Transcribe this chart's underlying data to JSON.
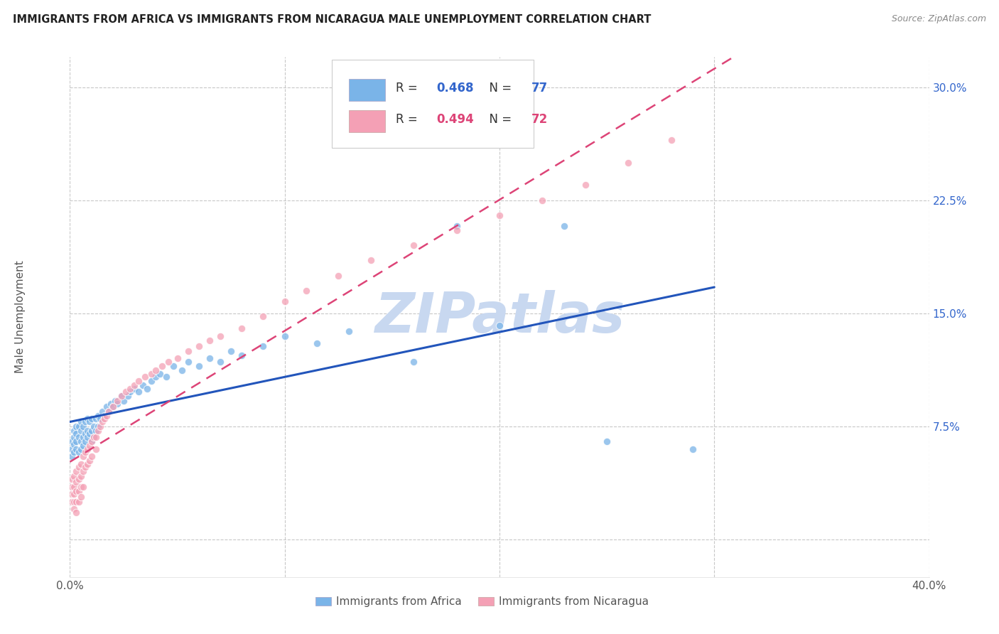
{
  "title": "IMMIGRANTS FROM AFRICA VS IMMIGRANTS FROM NICARAGUA MALE UNEMPLOYMENT CORRELATION CHART",
  "source": "Source: ZipAtlas.com",
  "ylabel": "Male Unemployment",
  "xlim": [
    0.0,
    0.4
  ],
  "ylim": [
    -0.025,
    0.32
  ],
  "series1_label": "Immigrants from Africa",
  "series2_label": "Immigrants from Nicaragua",
  "R1": 0.468,
  "N1": 77,
  "R2": 0.494,
  "N2": 72,
  "color1": "#7ab4e8",
  "color2": "#f4a0b5",
  "line1_color": "#2255bb",
  "line2_color": "#dd4477",
  "watermark": "ZIPatlas",
  "watermark_color": "#c8d8f0",
  "background_color": "#ffffff",
  "grid_color": "#c8c8c8",
  "africa_x": [
    0.001,
    0.001,
    0.001,
    0.002,
    0.002,
    0.002,
    0.002,
    0.003,
    0.003,
    0.003,
    0.003,
    0.004,
    0.004,
    0.004,
    0.005,
    0.005,
    0.005,
    0.005,
    0.006,
    0.006,
    0.006,
    0.007,
    0.007,
    0.007,
    0.008,
    0.008,
    0.008,
    0.009,
    0.009,
    0.01,
    0.01,
    0.01,
    0.011,
    0.011,
    0.012,
    0.012,
    0.013,
    0.013,
    0.014,
    0.015,
    0.016,
    0.017,
    0.018,
    0.019,
    0.02,
    0.021,
    0.022,
    0.024,
    0.025,
    0.027,
    0.028,
    0.03,
    0.032,
    0.034,
    0.036,
    0.038,
    0.04,
    0.042,
    0.045,
    0.048,
    0.052,
    0.055,
    0.06,
    0.065,
    0.07,
    0.075,
    0.08,
    0.09,
    0.1,
    0.115,
    0.13,
    0.16,
    0.18,
    0.2,
    0.23,
    0.25,
    0.29
  ],
  "africa_y": [
    0.055,
    0.06,
    0.065,
    0.058,
    0.063,
    0.068,
    0.072,
    0.06,
    0.065,
    0.07,
    0.075,
    0.058,
    0.068,
    0.075,
    0.06,
    0.065,
    0.072,
    0.078,
    0.062,
    0.068,
    0.075,
    0.065,
    0.07,
    0.078,
    0.068,
    0.072,
    0.08,
    0.07,
    0.078,
    0.065,
    0.072,
    0.08,
    0.068,
    0.075,
    0.072,
    0.08,
    0.075,
    0.082,
    0.08,
    0.085,
    0.082,
    0.088,
    0.085,
    0.09,
    0.088,
    0.092,
    0.09,
    0.095,
    0.092,
    0.095,
    0.098,
    0.1,
    0.098,
    0.102,
    0.1,
    0.105,
    0.108,
    0.11,
    0.108,
    0.115,
    0.112,
    0.118,
    0.115,
    0.12,
    0.118,
    0.125,
    0.122,
    0.128,
    0.135,
    0.13,
    0.138,
    0.118,
    0.208,
    0.142,
    0.208,
    0.065,
    0.06
  ],
  "nicaragua_x": [
    0.001,
    0.001,
    0.001,
    0.001,
    0.002,
    0.002,
    0.002,
    0.002,
    0.002,
    0.003,
    0.003,
    0.003,
    0.003,
    0.003,
    0.004,
    0.004,
    0.004,
    0.004,
    0.005,
    0.005,
    0.005,
    0.005,
    0.006,
    0.006,
    0.006,
    0.007,
    0.007,
    0.008,
    0.008,
    0.009,
    0.009,
    0.01,
    0.01,
    0.011,
    0.012,
    0.012,
    0.013,
    0.014,
    0.015,
    0.016,
    0.017,
    0.018,
    0.02,
    0.022,
    0.024,
    0.026,
    0.028,
    0.03,
    0.032,
    0.035,
    0.038,
    0.04,
    0.043,
    0.046,
    0.05,
    0.055,
    0.06,
    0.065,
    0.07,
    0.08,
    0.09,
    0.1,
    0.11,
    0.125,
    0.14,
    0.16,
    0.18,
    0.2,
    0.22,
    0.24,
    0.26,
    0.28
  ],
  "nicaragua_y": [
    0.04,
    0.035,
    0.03,
    0.025,
    0.042,
    0.035,
    0.03,
    0.025,
    0.02,
    0.045,
    0.038,
    0.032,
    0.025,
    0.018,
    0.048,
    0.04,
    0.032,
    0.025,
    0.05,
    0.042,
    0.035,
    0.028,
    0.055,
    0.045,
    0.035,
    0.058,
    0.048,
    0.06,
    0.05,
    0.062,
    0.052,
    0.065,
    0.055,
    0.068,
    0.068,
    0.06,
    0.072,
    0.075,
    0.078,
    0.08,
    0.082,
    0.085,
    0.088,
    0.092,
    0.095,
    0.098,
    0.1,
    0.102,
    0.105,
    0.108,
    0.11,
    0.112,
    0.115,
    0.118,
    0.12,
    0.125,
    0.128,
    0.132,
    0.135,
    0.14,
    0.148,
    0.158,
    0.165,
    0.175,
    0.185,
    0.195,
    0.205,
    0.215,
    0.225,
    0.235,
    0.25,
    0.265
  ]
}
